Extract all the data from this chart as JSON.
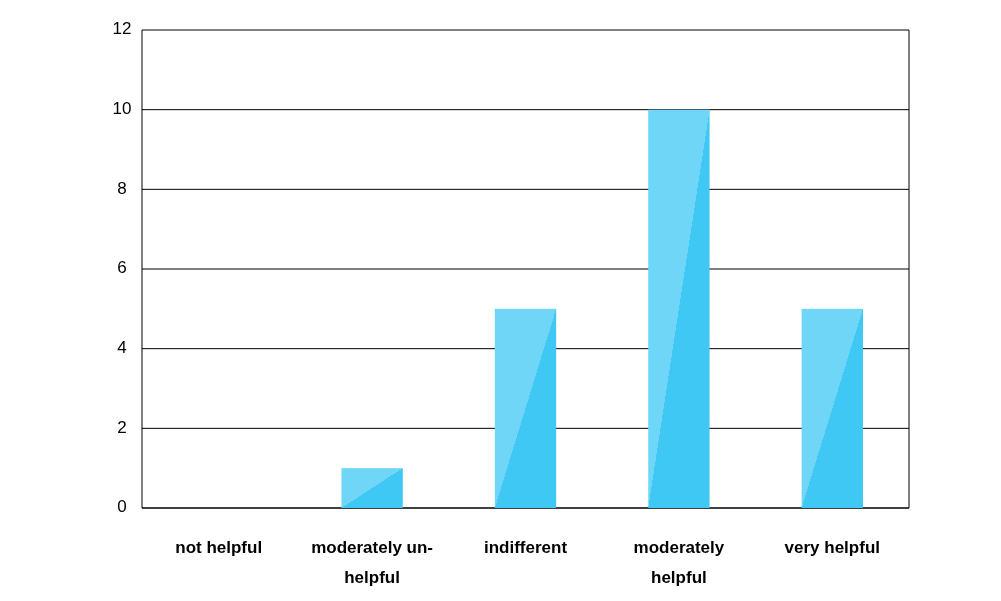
{
  "chart_data": {
    "type": "bar",
    "categories": [
      "not helpful",
      "moderately un-helpful",
      "indifferent",
      "moderately helpful",
      "very helpful"
    ],
    "values": [
      0,
      1,
      5,
      10,
      5
    ],
    "color": "#40c8f4",
    "ylim": [
      0,
      12
    ],
    "yticks": [
      0,
      2,
      4,
      6,
      8,
      10,
      12
    ],
    "grid": "y"
  }
}
